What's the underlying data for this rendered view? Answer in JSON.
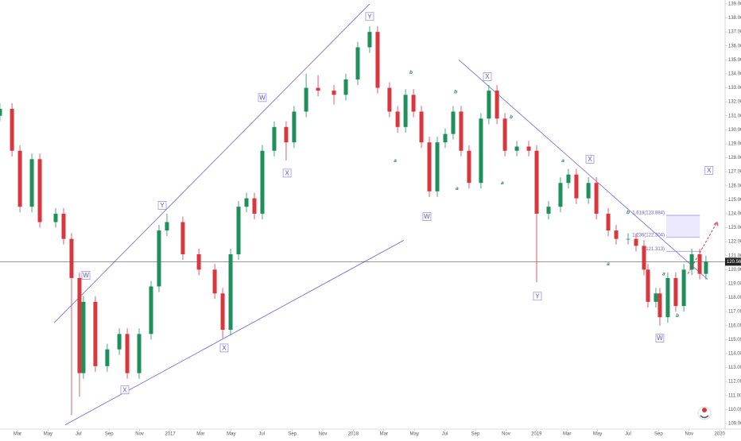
{
  "chart_data": {
    "type": "candlestick",
    "x": [
      0.85,
      1.64,
      2.16,
      2.94,
      3.46,
      4.5,
      5.02,
      5.54,
      6.06,
      6.32,
      7.1,
      7.88,
      8.67,
      9.19,
      9.97,
      10.75,
      11.27,
      11.79,
      12.83,
      13.88,
      14.92,
      15.44,
      15.96,
      16.48,
      17.0,
      17.52,
      18.04,
      18.82,
      19.6,
      20.12,
      20.91,
      21.69,
      22.73,
      23.51,
      24.29,
      25.07,
      25.59,
      26.37,
      26.9,
      27.42,
      27.94,
      28.46,
      28.98,
      29.5,
      30.02,
      30.54,
      31.06,
      31.58,
      32.36,
      32.88,
      33.41,
      33.93,
      34.71,
      35.49,
      36.01,
      36.79,
      37.57,
      38.09,
      38.61,
      39.4,
      39.92,
      40.7,
      41.22,
      42.0,
      42.52,
      43.04,
      43.3,
      43.82,
      44.08,
      44.6,
      45.12,
      45.65,
      46.17,
      46.69,
      47.1
    ],
    "open": [
      131.0,
      131.5,
      128.5,
      124.5,
      127.9,
      123.4,
      124,
      122.2,
      119.4,
      112.6,
      117.7,
      113.1,
      114.3,
      115.4,
      112.6,
      115.4,
      118.8,
      122.8,
      123.4,
      121.1,
      120,
      118.3,
      115.7,
      121.1,
      124.5,
      125.1,
      124,
      128.5,
      130.2,
      129.1,
      131.3,
      133,
      132.8,
      132.5,
      133.6,
      135.9,
      137,
      133,
      131.3,
      130.2,
      132.5,
      131.3,
      129.1,
      125.6,
      129.1,
      129.7,
      131.3,
      128.5,
      126.2,
      130.8,
      132.8,
      130.8,
      128.5,
      128.8,
      128.5,
      124,
      124.5,
      126.2,
      126.8,
      125.1,
      126.2,
      124,
      122.8,
      122.2,
      122.2,
      121.7,
      120,
      117.7,
      118.3,
      116.6,
      119.4,
      117.4,
      120,
      121.1,
      119.7
    ],
    "high": [
      131.9,
      131.9,
      128.9,
      128.3,
      128.3,
      124.4,
      124.4,
      122.6,
      119.8,
      118.1,
      118.1,
      114.7,
      115.8,
      115.8,
      115.8,
      119.2,
      123.2,
      124.0,
      123.8,
      121.5,
      120.4,
      118.7,
      121.5,
      124.9,
      125.5,
      125.5,
      128.9,
      130.6,
      130.6,
      131.7,
      134.0,
      133.9,
      133.2,
      134.0,
      136.3,
      137.4,
      137.4,
      133.4,
      131.7,
      132.9,
      132.9,
      131.7,
      129.5,
      129.5,
      130.1,
      131.7,
      131.7,
      128.9,
      131.2,
      133.2,
      133.2,
      131.2,
      129.2,
      129.2,
      128.9,
      124.9,
      126.6,
      127.2,
      127.2,
      126.6,
      126.6,
      124.4,
      123.2,
      122.6,
      122.6,
      122.1,
      120.4,
      118.7,
      118.7,
      119.8,
      119.8,
      120.4,
      121.5,
      121.5,
      121.0
    ],
    "low": [
      130.6,
      128.1,
      124.1,
      124.1,
      123.0,
      123.0,
      121.8,
      109.6,
      110.9,
      112.2,
      112.7,
      112.7,
      113.9,
      112.2,
      112.2,
      115.0,
      118.4,
      122.4,
      120.7,
      119.6,
      117.9,
      115.1,
      115.3,
      120.7,
      124.1,
      123.6,
      123.6,
      128.1,
      127.8,
      128.7,
      130.9,
      132.4,
      131.8,
      132.1,
      133.2,
      135.5,
      132.6,
      130.9,
      129.8,
      129.8,
      130.9,
      128.7,
      125.2,
      125.2,
      128.7,
      129.3,
      128.1,
      125.8,
      125.8,
      130.4,
      130.4,
      128.1,
      128.1,
      128.1,
      119.1,
      123.6,
      124.1,
      125.8,
      124.7,
      124.7,
      123.6,
      122.4,
      121.8,
      121.8,
      121.3,
      119.6,
      117.3,
      117.3,
      116.0,
      116.2,
      117.0,
      117.0,
      119.6,
      119.3,
      119.3
    ],
    "close": [
      131.5,
      128.5,
      124.5,
      127.9,
      123.4,
      124,
      122.2,
      119.4,
      112.6,
      117.7,
      113.1,
      114.3,
      115.4,
      112.6,
      115.4,
      118.8,
      122.8,
      123.4,
      121.1,
      120,
      118.3,
      115.7,
      121.1,
      124.5,
      125.1,
      124,
      128.5,
      130.2,
      129.1,
      131.3,
      133,
      132.8,
      132.5,
      133.6,
      135.9,
      137,
      133,
      131.3,
      130.2,
      132.5,
      131.3,
      129.1,
      125.6,
      129.1,
      129.7,
      131.3,
      128.5,
      126.2,
      130.8,
      132.8,
      130.8,
      128.5,
      128.8,
      128.5,
      124,
      124.5,
      126.2,
      126.8,
      125.1,
      126.2,
      124,
      122.8,
      122.2,
      122.2,
      121.7,
      120,
      117.7,
      118.3,
      116.6,
      119.4,
      117.4,
      120,
      121.1,
      119.7,
      120.566
    ],
    "up_color": "#1f8f5c",
    "down_color": "#d9363e",
    "xlim": [
      0.854,
      48.354
    ],
    "ylim": [
      108.6,
      139.28
    ],
    "xticks": [
      {
        "value": 2,
        "label": "Mar"
      },
      {
        "value": 4,
        "label": "May"
      },
      {
        "value": 6,
        "label": "Jul"
      },
      {
        "value": 8,
        "label": "Sep"
      },
      {
        "value": 10,
        "label": "Nov"
      },
      {
        "value": 12,
        "label": "2017"
      },
      {
        "value": 14,
        "label": "Mar"
      },
      {
        "value": 16,
        "label": "May"
      },
      {
        "value": 18,
        "label": "Jul"
      },
      {
        "value": 20,
        "label": "Sep"
      },
      {
        "value": 22,
        "label": "Nov"
      },
      {
        "value": 24,
        "label": "2018"
      },
      {
        "value": 26,
        "label": "Mar"
      },
      {
        "value": 28,
        "label": "May"
      },
      {
        "value": 30,
        "label": "Jul"
      },
      {
        "value": 32,
        "label": "Sep"
      },
      {
        "value": 34,
        "label": "Nov"
      },
      {
        "value": 36,
        "label": "2019"
      },
      {
        "value": 38,
        "label": "Mar"
      },
      {
        "value": 40,
        "label": "May"
      },
      {
        "value": 42,
        "label": "Jul"
      },
      {
        "value": 44,
        "label": "Sep"
      },
      {
        "value": 46,
        "label": "Nov"
      },
      {
        "value": 48,
        "label": "2020"
      }
    ],
    "yticks": [
      {
        "value": 109,
        "label": "109.000"
      },
      {
        "value": 110,
        "label": "110.000"
      },
      {
        "value": 111,
        "label": "111.000"
      },
      {
        "value": 112,
        "label": "112.000"
      },
      {
        "value": 113,
        "label": "113.000"
      },
      {
        "value": 114,
        "label": "114.000"
      },
      {
        "value": 115,
        "label": "115.000"
      },
      {
        "value": 116,
        "label": "116.000"
      },
      {
        "value": 117,
        "label": "117.000"
      },
      {
        "value": 118,
        "label": "118.000"
      },
      {
        "value": 119,
        "label": "119.000"
      },
      {
        "value": 120,
        "label": "120.000"
      },
      {
        "value": 121,
        "label": "121.000"
      },
      {
        "value": 122,
        "label": "122.000"
      },
      {
        "value": 123,
        "label": "123.000"
      },
      {
        "value": 124,
        "label": "124.000"
      },
      {
        "value": 125,
        "label": "125.000"
      },
      {
        "value": 126,
        "label": "126.000"
      },
      {
        "value": 127,
        "label": "127.000"
      },
      {
        "value": 128,
        "label": "128.000"
      },
      {
        "value": 129,
        "label": "129.000"
      },
      {
        "value": 130,
        "label": "130.000"
      },
      {
        "value": 131,
        "label": "131.000"
      },
      {
        "value": 132,
        "label": "132.000"
      },
      {
        "value": 133,
        "label": "133.000"
      },
      {
        "value": 134,
        "label": "134.000"
      },
      {
        "value": 135,
        "label": "135.000"
      },
      {
        "value": 136,
        "label": "136.000"
      },
      {
        "value": 137,
        "label": "137.000"
      },
      {
        "value": 138,
        "label": "138.000"
      },
      {
        "value": 139,
        "label": "139.000"
      }
    ],
    "last_price": {
      "value": 120.566,
      "label": "120.566"
    },
    "wave_labels": [
      {
        "text": "W",
        "x": 18.04,
        "y": 132.3
      },
      {
        "text": "W",
        "x": 6.48,
        "y": 119.6
      },
      {
        "text": "Y",
        "x": 11.48,
        "y": 124.6
      },
      {
        "text": "X",
        "x": 9.03,
        "y": 111.4
      },
      {
        "text": "X",
        "x": 15.54,
        "y": 114.4
      },
      {
        "text": "X",
        "x": 19.66,
        "y": 126.9
      },
      {
        "text": "Y",
        "x": 25.07,
        "y": 138.1
      },
      {
        "text": "W",
        "x": 28.82,
        "y": 123.8
      },
      {
        "text": "X",
        "x": 32.78,
        "y": 133.8
      },
      {
        "text": "Y",
        "x": 36.06,
        "y": 118.1
      },
      {
        "text": "X",
        "x": 39.5,
        "y": 127.9
      },
      {
        "text": "W",
        "x": 44.08,
        "y": 115.1
      },
      {
        "text": "X",
        "x": 47.3,
        "y": 127.1
      }
    ],
    "sub_labels": [
      {
        "text": "b",
        "x": 27.78,
        "y": 134.1
      },
      {
        "text": "a",
        "x": 26.74,
        "y": 127.8
      },
      {
        "text": "b",
        "x": 30.7,
        "y": 132.7
      },
      {
        "text": "a",
        "x": 30.8,
        "y": 125.8
      },
      {
        "text": "b",
        "x": 34.34,
        "y": 130.9
      },
      {
        "text": "a",
        "x": 33.77,
        "y": 126.2
      },
      {
        "text": "a",
        "x": 37.73,
        "y": 127.8
      },
      {
        "text": "b",
        "x": 42.0,
        "y": 124.1
      },
      {
        "text": "a",
        "x": 40.7,
        "y": 120.4
      },
      {
        "text": "a",
        "x": 44.34,
        "y": 119.7
      },
      {
        "text": "b",
        "x": 45.23,
        "y": 116.7
      }
    ],
    "trend_lines": [
      {
        "x": [
          4.4,
          25.07
        ],
        "y": [
          116.2,
          139.0
        ]
      },
      {
        "x": [
          5.12,
          27.31
        ],
        "y": [
          108.9,
          122.1
        ]
      },
      {
        "x": [
          30.91,
          47.21
        ],
        "y": [
          135.0,
          119.3
        ]
      }
    ],
    "projection": {
      "x": [
        45.91,
        47.83
      ],
      "y": [
        119.7,
        123.4
      ]
    },
    "fib_x": [
      44.5,
      46.7
    ],
    "fib_levels": [
      {
        "value": 123.884,
        "label": "1.618(123.884)"
      },
      {
        "value": 122.304,
        "label": "1.236(122.304)"
      },
      {
        "value": 121.313,
        "label": "1(121.313)"
      }
    ]
  }
}
